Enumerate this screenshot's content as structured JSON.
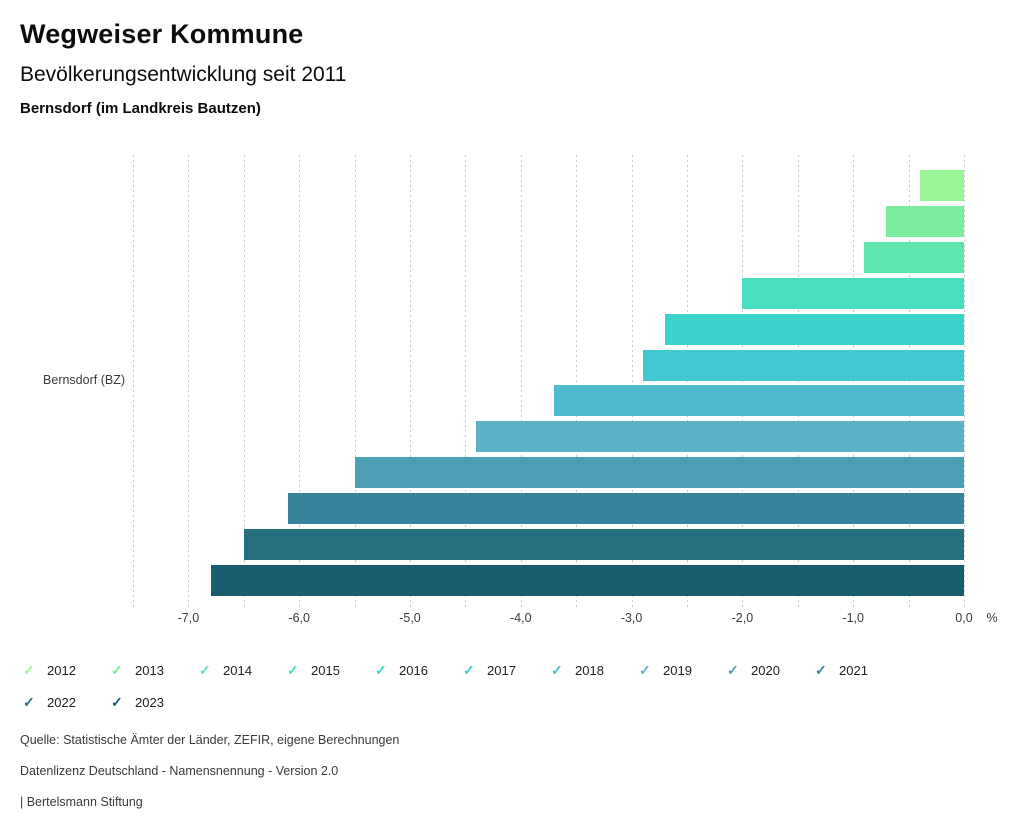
{
  "header": {
    "title": "Wegweiser Kommune",
    "subtitle": "Bevölkerungsentwicklung seit 2011",
    "region": "Bernsdorf (im Landkreis Bautzen)"
  },
  "chart_data": {
    "type": "bar",
    "orientation": "horizontal",
    "title": "Bevölkerungsentwicklung seit 2011",
    "group_label": "Bernsdorf (BZ)",
    "unit": "%",
    "categories": [
      "2012",
      "2013",
      "2014",
      "2015",
      "2016",
      "2017",
      "2018",
      "2019",
      "2020",
      "2021",
      "2022",
      "2023"
    ],
    "values": [
      -0.4,
      -0.7,
      -0.9,
      -2.0,
      -2.7,
      -2.9,
      -3.7,
      -4.4,
      -5.5,
      -6.1,
      -6.5,
      -6.8
    ],
    "colors": [
      "#99F595",
      "#7BEC9E",
      "#5FE5AD",
      "#4ADEC0",
      "#3DD3CD",
      "#41C8D0",
      "#4DBBCB",
      "#5BB1C5",
      "#4C9FB2",
      "#37839C",
      "#266F80",
      "#175D6D"
    ],
    "xlim": [
      -7.5,
      0
    ],
    "grid_step": 0.5,
    "grid": true,
    "xticks": [
      "-7,0",
      "-6,0",
      "-5,0",
      "-4,0",
      "-3,0",
      "-2,0",
      "-1,0",
      "0,0"
    ],
    "xtick_values": [
      -7,
      -6,
      -5,
      -4,
      -3,
      -2,
      -1,
      0
    ],
    "legend_position": "bottom",
    "legend_check_glyph": "✓"
  },
  "footer": {
    "source": "Quelle: Statistische Ämter der Länder, ZEFIR, eigene Berechnungen",
    "license": "Datenlizenz Deutschland - Namensnennung - Version 2.0",
    "attribution": "| Bertelsmann Stiftung"
  }
}
